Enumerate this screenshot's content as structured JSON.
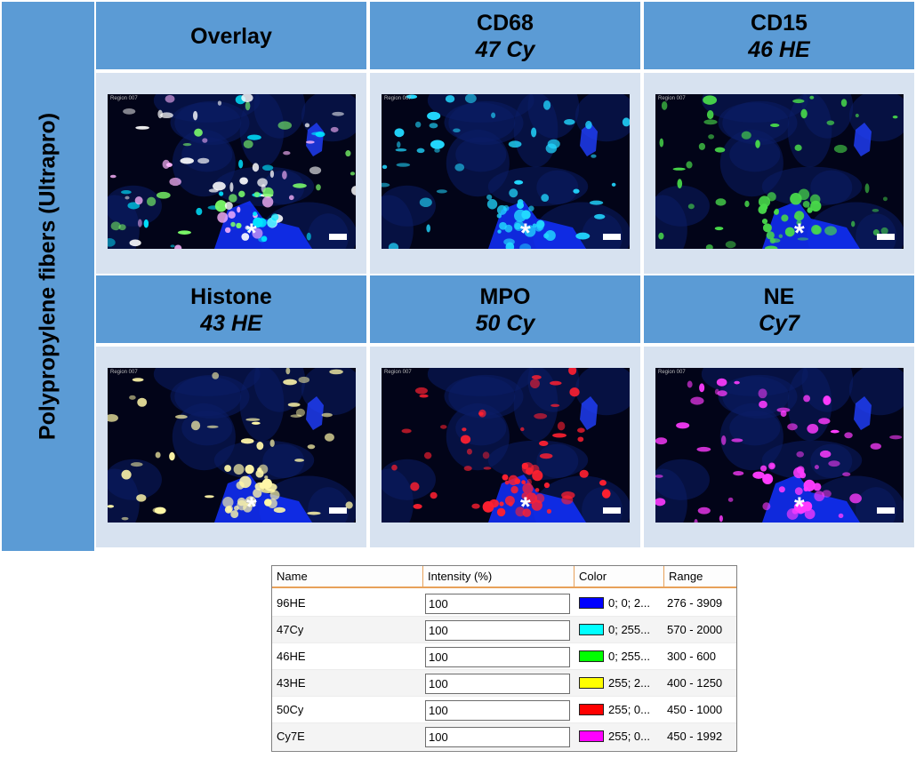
{
  "side_label": "Polypropylene fibers (Ultrapro)",
  "panels": [
    {
      "line1": "Overlay",
      "line2": "",
      "region": "Region 007",
      "asterisk": "*"
    },
    {
      "line1": "CD68",
      "line2": "47 Cy",
      "region": "Region 007",
      "asterisk": "*"
    },
    {
      "line1": "CD15",
      "line2": "46 HE",
      "region": "Region 007",
      "asterisk": "*"
    },
    {
      "line1": "Histone",
      "line2": "43 HE",
      "region": "Region 007",
      "asterisk": "*"
    },
    {
      "line1": "MPO",
      "line2": "50 Cy",
      "region": "Region 007",
      "asterisk": "*"
    },
    {
      "line1": "NE",
      "line2": "Cy7",
      "region": "Region 007",
      "asterisk": "*"
    }
  ],
  "panel_colors": {
    "overlay": [
      "#00e5ff",
      "#ffffff",
      "#ffb6ff",
      "#7dff6a"
    ],
    "cd68": [
      "#22d8ff"
    ],
    "cd15": [
      "#48d84a"
    ],
    "histone": [
      "#fff7a8"
    ],
    "mpo": [
      "#ff2030"
    ],
    "ne": [
      "#ff3cff"
    ]
  },
  "table": {
    "headers": {
      "name": "Name",
      "intensity": "Intensity (%)",
      "color": "Color",
      "range": "Range"
    },
    "rows": [
      {
        "name": "96HE",
        "intensity": "100",
        "swatch": "#0000ff",
        "color": "0; 0; 2...",
        "range": "276 - 3909"
      },
      {
        "name": "47Cy",
        "intensity": "100",
        "swatch": "#00ffff",
        "color": "0; 255...",
        "range": "570 - 2000"
      },
      {
        "name": "46HE",
        "intensity": "100",
        "swatch": "#00ff00",
        "color": "0; 255...",
        "range": "300 - 600"
      },
      {
        "name": "43HE",
        "intensity": "100",
        "swatch": "#ffff00",
        "color": "255; 2...",
        "range": "400 - 1250"
      },
      {
        "name": "50Cy",
        "intensity": "100",
        "swatch": "#ff0000",
        "color": "255; 0...",
        "range": "450 - 1000"
      },
      {
        "name": "Cy7E",
        "intensity": "100",
        "swatch": "#ff00ff",
        "color": "255; 0...",
        "range": "450 - 1992"
      }
    ]
  }
}
